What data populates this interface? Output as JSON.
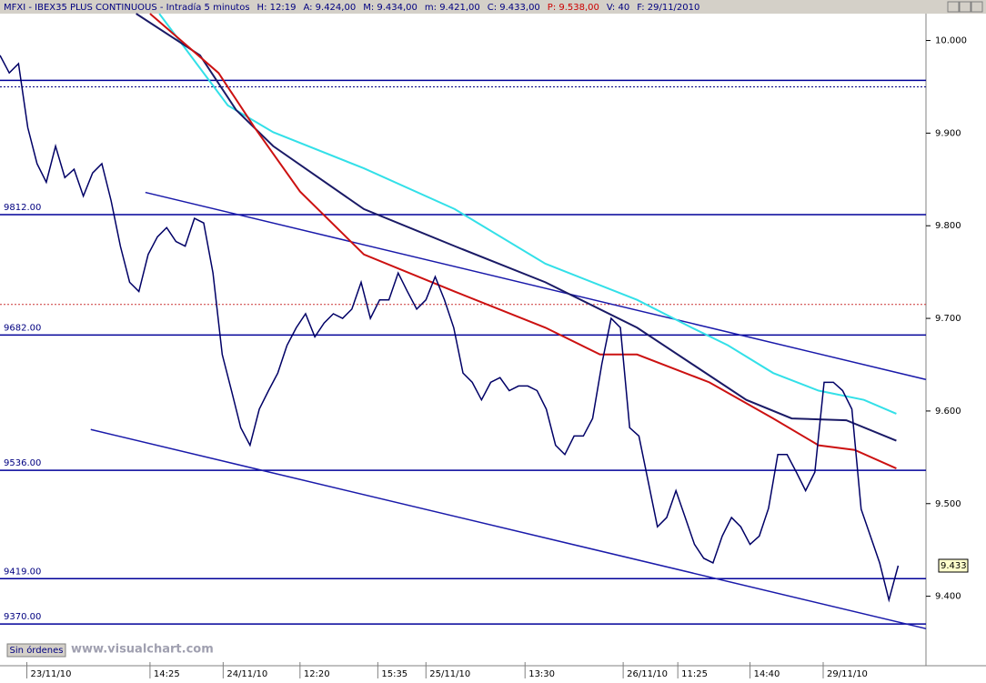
{
  "header": {
    "symbol": "MFXI - IBEX35 PLUS CONTINUOUS - Intradía 5 minutos",
    "fields": [
      {
        "text": "H: 12:19",
        "color": "#000080"
      },
      {
        "text": "A: 9.424,00",
        "color": "#000080"
      },
      {
        "text": "M: 9.434,00",
        "color": "#000080"
      },
      {
        "text": "m: 9.421,00",
        "color": "#000080"
      },
      {
        "text": "C: 9.433,00",
        "color": "#000080"
      },
      {
        "text": "P: 9.538,00",
        "color": "#cc0000"
      },
      {
        "text": "V: 40",
        "color": "#000080"
      },
      {
        "text": "F: 29/11/2010",
        "color": "#000080"
      }
    ]
  },
  "footer": {
    "button": "Sin órdenes",
    "watermark": "www.visualchart.com"
  },
  "chart_data": {
    "type": "line",
    "xlim": [
      0,
      100
    ],
    "ylim": [
      9325,
      10029
    ],
    "yticks": [
      {
        "value": 10000,
        "label": "10.000"
      },
      {
        "value": 9900,
        "label": "9.900"
      },
      {
        "value": 9800,
        "label": "9.800"
      },
      {
        "value": 9700,
        "label": "9.700"
      },
      {
        "value": 9600,
        "label": "9.600"
      },
      {
        "value": 9500,
        "label": "9.500"
      },
      {
        "value": 9400,
        "label": "9.400"
      }
    ],
    "xticks": [
      {
        "value": 2.9,
        "label": "23/11/10"
      },
      {
        "value": 16.2,
        "label": "14:25"
      },
      {
        "value": 24.1,
        "label": "24/11/10"
      },
      {
        "value": 32.4,
        "label": "12:20"
      },
      {
        "value": 40.8,
        "label": "15:35"
      },
      {
        "value": 46,
        "label": "25/11/10"
      },
      {
        "value": 56.7,
        "label": "13:30"
      },
      {
        "value": 67.3,
        "label": "26/11/10"
      },
      {
        "value": 73.2,
        "label": "11:25"
      },
      {
        "value": 81,
        "label": "14:40"
      },
      {
        "value": 88.9,
        "label": "29/11/10"
      }
    ],
    "x": [
      0,
      1,
      2,
      3,
      4,
      5,
      6,
      7,
      8,
      9,
      10,
      11,
      12,
      13,
      14,
      15,
      16,
      17,
      18,
      19,
      20,
      21,
      22,
      23,
      24,
      25,
      26,
      27,
      28,
      29,
      30,
      31,
      32,
      33,
      34,
      35,
      36,
      37,
      38,
      39,
      40,
      41,
      42,
      43,
      44,
      45,
      46,
      47,
      48,
      49,
      50,
      51,
      52,
      53,
      54,
      55,
      56,
      57,
      58,
      59,
      60,
      61,
      62,
      63,
      64,
      65,
      66,
      67,
      68,
      69,
      70,
      71,
      72,
      73,
      74,
      75,
      76,
      77,
      78,
      79,
      80,
      81,
      82,
      83,
      84,
      85,
      86,
      87,
      88,
      89,
      90,
      91,
      92,
      93,
      94,
      95,
      96,
      97
    ],
    "series": [
      {
        "color": "#000066",
        "values": [
          9984,
          9965,
          9975,
          9906,
          9867,
          9847,
          9886,
          9852,
          9861,
          9832,
          9857,
          9867,
          9827,
          9778,
          9739,
          9729,
          9769,
          9788,
          9798,
          9783,
          9778,
          9808,
          9803,
          9749,
          9661,
          9622,
          9582,
          9563,
          9602,
          9622,
          9641,
          9671,
          9690,
          9705,
          9680,
          9695,
          9705,
          9700,
          9710,
          9739,
          9700,
          9720,
          9720,
          9749,
          9729,
          9710,
          9720,
          9745,
          9720,
          9690,
          9641,
          9631,
          9612,
          9631,
          9636,
          9622,
          9627,
          9627,
          9622,
          9602,
          9563,
          9553,
          9573,
          9573,
          9592,
          9651,
          9700,
          9690,
          9582,
          9573,
          9524,
          9475,
          9485,
          9514,
          9485,
          9456,
          9441,
          9436,
          9465,
          9485,
          9475,
          9456,
          9465,
          9495,
          9553,
          9553,
          9534,
          9514,
          9534,
          9631,
          9631,
          9622,
          9602,
          9494,
          9465,
          9436,
          9396,
          9433
        ]
      }
    ],
    "moving_averages": [
      {
        "color": "#33e0e8",
        "x": [
          17.2,
          24.6,
          29.5,
          39.3,
          49.1,
          58.9,
          68.8,
          74.7,
          78.6,
          83.5,
          88.4,
          93.3,
          96.8
        ],
        "values": [
          10029,
          9930,
          9901,
          9862,
          9818,
          9759,
          9720,
          9690,
          9671,
          9641,
          9622,
          9612,
          9597
        ]
      },
      {
        "color": "#1a1a66",
        "x": [
          14.7,
          21.6,
          25.5,
          29.5,
          39.3,
          49.1,
          58.9,
          68.8,
          74.7,
          80.6,
          85.5,
          91.4,
          96.8
        ],
        "values": [
          10029,
          9984,
          9925,
          9886,
          9818,
          9778,
          9739,
          9690,
          9651,
          9612,
          9592,
          9590,
          9568
        ]
      },
      {
        "color": "#cc1111",
        "x": [
          16.2,
          23.6,
          27.5,
          32.4,
          39.3,
          49.1,
          58.9,
          64.8,
          68.8,
          76.6,
          83.5,
          88.4,
          92.3,
          96.8
        ],
        "values": [
          10029,
          9965,
          9906,
          9837,
          9769,
          9729,
          9690,
          9661,
          9661,
          9631,
          9592,
          9563,
          9558,
          9538
        ]
      }
    ],
    "levels": [
      {
        "value": 9957
      },
      {
        "value": 9812,
        "label": "9812.00"
      },
      {
        "value": 9682,
        "label": "9682.00"
      },
      {
        "value": 9536,
        "label": "9536.00"
      },
      {
        "value": 9419,
        "label": "9419.00"
      },
      {
        "value": 9370,
        "label": "9370.00"
      }
    ],
    "dashed_levels": [
      {
        "value": 9950,
        "color": "#000080"
      },
      {
        "value": 9715,
        "color": "#cc3333"
      }
    ],
    "trendlines": [
      {
        "x": [
          15.7,
          100
        ],
        "values": [
          9836,
          9634
        ]
      },
      {
        "x": [
          9.8,
          100
        ],
        "values": [
          9580,
          9365
        ]
      }
    ],
    "last_price": {
      "value": 9433,
      "label": "9.433"
    }
  }
}
